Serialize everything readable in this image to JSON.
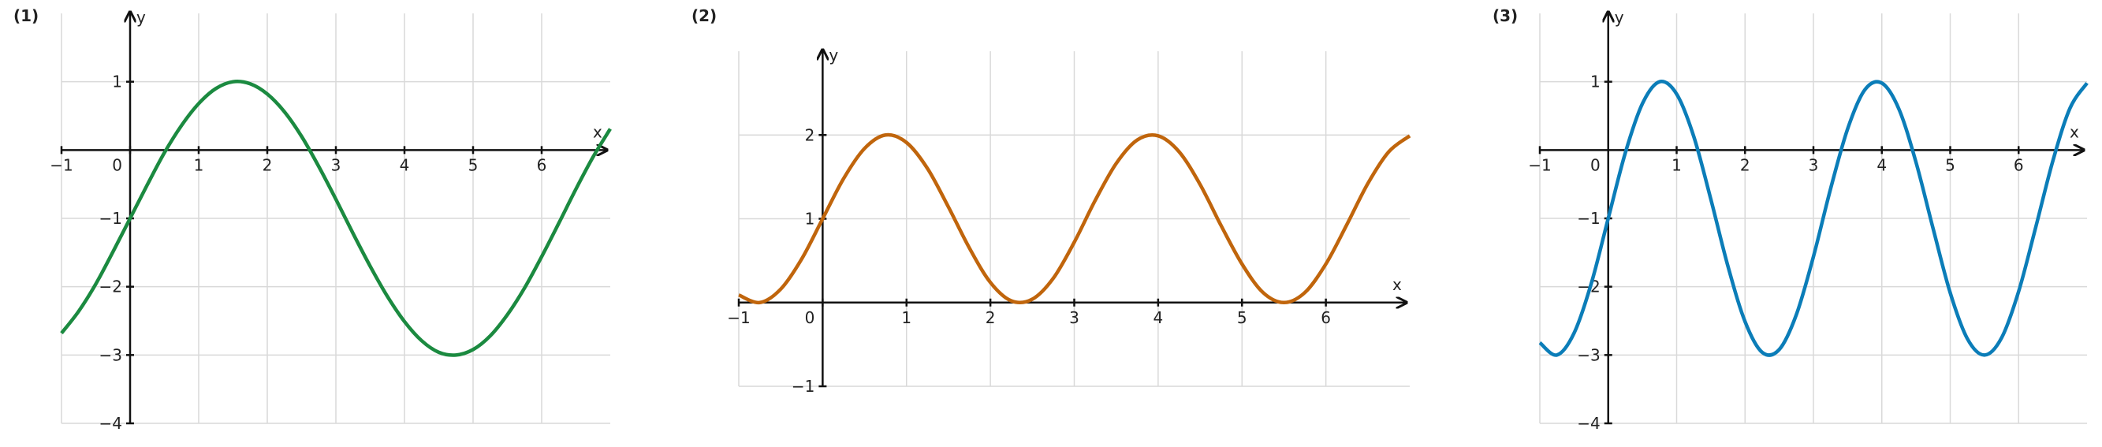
{
  "chart_data": [
    {
      "type": "line",
      "title": "(1)",
      "x_label": "x",
      "y_label": "y",
      "color": "#1b8a40",
      "grid": true,
      "xlim": [
        -1,
        7
      ],
      "ylim": [
        -4,
        2
      ],
      "xticks": [
        {
          "value": -1,
          "label": "−1"
        },
        0,
        1,
        2,
        3,
        4,
        5,
        6
      ],
      "yticks": [
        {
          "value": -4,
          "label": "−4"
        },
        {
          "value": -3,
          "label": "−3"
        },
        {
          "value": -2,
          "label": "−2"
        },
        {
          "value": -1,
          "label": "−1"
        },
        1
      ],
      "x": [
        -1,
        -0.75,
        -0.5,
        -0.25,
        0,
        0.25,
        0.5,
        0.75,
        1,
        1.25,
        1.5,
        1.75,
        2,
        2.25,
        2.5,
        2.75,
        3,
        3.25,
        3.5,
        3.75,
        4,
        4.25,
        4.5,
        4.75,
        5,
        5.25,
        5.5,
        5.75,
        6,
        6.25,
        6.5,
        6.75,
        7
      ],
      "values": [
        -2.68,
        -2.36,
        -1.96,
        -1.49,
        -1,
        -0.51,
        -0.04,
        0.36,
        0.68,
        0.9,
        1.0,
        0.97,
        0.82,
        0.56,
        0.2,
        -0.24,
        -0.72,
        -1.22,
        -1.7,
        -2.14,
        -2.51,
        -2.79,
        -2.96,
        -3.0,
        -2.92,
        -2.72,
        -2.41,
        -2.02,
        -1.56,
        -1.07,
        -0.57,
        -0.1,
        0.31
      ]
    },
    {
      "type": "line",
      "title": "(2)",
      "x_label": "x",
      "y_label": "y",
      "color": "#c0650c",
      "grid": true,
      "xlim": [
        -1,
        7
      ],
      "ylim": [
        -1,
        3
      ],
      "xticks": [
        {
          "value": -1,
          "label": "−1"
        },
        0,
        1,
        2,
        3,
        4,
        5,
        6
      ],
      "yticks": [
        {
          "value": -1,
          "label": "−1"
        },
        1,
        2
      ],
      "x": [
        -1,
        -0.75,
        -0.5,
        -0.25,
        0,
        0.25,
        0.5,
        0.75,
        1,
        1.25,
        1.5,
        1.75,
        2,
        2.25,
        2.5,
        2.75,
        3,
        3.25,
        3.5,
        3.75,
        4,
        4.25,
        4.5,
        4.75,
        5,
        5.25,
        5.5,
        5.75,
        6,
        6.25,
        6.5,
        6.75,
        7
      ],
      "values": [
        0.09,
        0.0,
        0.16,
        0.52,
        1,
        1.48,
        1.84,
        2.0,
        1.91,
        1.6,
        1.14,
        0.65,
        0.24,
        0.02,
        0.04,
        0.29,
        0.72,
        1.22,
        1.66,
        1.94,
        1.99,
        1.8,
        1.41,
        0.92,
        0.46,
        0.12,
        0.0,
        0.12,
        0.46,
        0.93,
        1.42,
        1.8,
        1.99
      ]
    },
    {
      "type": "line",
      "title": "(3)",
      "x_label": "x",
      "y_label": "y",
      "color": "#0b7db8",
      "grid": true,
      "xlim": [
        -1,
        7
      ],
      "ylim": [
        -4,
        2
      ],
      "xticks": [
        {
          "value": -1,
          "label": "−1"
        },
        0,
        1,
        2,
        3,
        4,
        5,
        6
      ],
      "yticks": [
        {
          "value": -4,
          "label": "−4"
        },
        {
          "value": -3,
          "label": "−3"
        },
        {
          "value": -2,
          "label": "−2"
        },
        {
          "value": -1,
          "label": "−1"
        },
        1
      ],
      "x": [
        -1,
        -0.75,
        -0.5,
        -0.25,
        0,
        0.25,
        0.5,
        0.75,
        1,
        1.25,
        1.5,
        1.75,
        2,
        2.25,
        2.5,
        2.75,
        3,
        3.25,
        3.5,
        3.75,
        4,
        4.25,
        4.5,
        4.75,
        5,
        5.25,
        5.5,
        5.75,
        6,
        6.25,
        6.5,
        6.75,
        7
      ],
      "values": [
        -2.82,
        -3.0,
        -2.68,
        -1.96,
        -1,
        -0.04,
        0.68,
        1.0,
        0.82,
        0.2,
        -0.72,
        -1.7,
        -2.51,
        -2.96,
        -2.92,
        -2.41,
        -1.56,
        -0.57,
        0.31,
        0.88,
        0.98,
        0.6,
        -0.18,
        -1.15,
        -2.09,
        -2.76,
        -3.0,
        -2.75,
        -2.07,
        -1.13,
        -0.16,
        0.61,
        0.98
      ]
    }
  ]
}
